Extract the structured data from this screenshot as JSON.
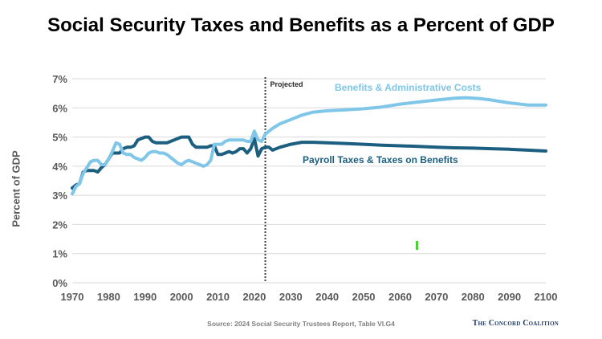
{
  "header": {
    "title": "Social Security Taxes and Benefits as a Percent of GDP"
  },
  "footer": {
    "source": "Source: 2024 Social Security Trustees Report, Table VI.G4",
    "brand": "The Concord Coalition"
  },
  "chart_data": {
    "type": "line",
    "title": "Social Security Taxes and Benefits as a Percent of GDP",
    "xlabel": "",
    "ylabel": "Percent of GDP",
    "xlim": [
      1970,
      2100
    ],
    "ylim": [
      0,
      7
    ],
    "xticks": [
      "1970",
      "1980",
      "1990",
      "2000",
      "2010",
      "2020",
      "2030",
      "2040",
      "2050",
      "2060",
      "2070",
      "2080",
      "2090",
      "2100"
    ],
    "yticks": [
      "0%",
      "1%",
      "2%",
      "3%",
      "4%",
      "5%",
      "6%",
      "7%"
    ],
    "grid": "horizontal",
    "projection_marker": {
      "x": 2023,
      "label": "Projected"
    },
    "series": [
      {
        "name": "Benefits & Administrative Costs",
        "color": "#7fc6e8",
        "points": [
          [
            1970,
            3.05
          ],
          [
            1971,
            3.3
          ],
          [
            1972,
            3.4
          ],
          [
            1973,
            3.75
          ],
          [
            1974,
            3.95
          ],
          [
            1975,
            4.15
          ],
          [
            1976,
            4.2
          ],
          [
            1977,
            4.2
          ],
          [
            1978,
            4.05
          ],
          [
            1979,
            4.05
          ],
          [
            1980,
            4.25
          ],
          [
            1981,
            4.5
          ],
          [
            1982,
            4.8
          ],
          [
            1983,
            4.75
          ],
          [
            1984,
            4.45
          ],
          [
            1985,
            4.4
          ],
          [
            1986,
            4.4
          ],
          [
            1987,
            4.3
          ],
          [
            1988,
            4.25
          ],
          [
            1989,
            4.2
          ],
          [
            1990,
            4.3
          ],
          [
            1991,
            4.45
          ],
          [
            1992,
            4.5
          ],
          [
            1993,
            4.5
          ],
          [
            1994,
            4.45
          ],
          [
            1995,
            4.45
          ],
          [
            1996,
            4.4
          ],
          [
            1997,
            4.3
          ],
          [
            1998,
            4.2
          ],
          [
            1999,
            4.1
          ],
          [
            2000,
            4.05
          ],
          [
            2001,
            4.15
          ],
          [
            2002,
            4.2
          ],
          [
            2003,
            4.15
          ],
          [
            2004,
            4.1
          ],
          [
            2005,
            4.05
          ],
          [
            2006,
            4.0
          ],
          [
            2007,
            4.05
          ],
          [
            2008,
            4.2
          ],
          [
            2009,
            4.75
          ],
          [
            2010,
            4.75
          ],
          [
            2011,
            4.75
          ],
          [
            2012,
            4.85
          ],
          [
            2013,
            4.9
          ],
          [
            2014,
            4.9
          ],
          [
            2015,
            4.9
          ],
          [
            2016,
            4.9
          ],
          [
            2017,
            4.9
          ],
          [
            2018,
            4.85
          ],
          [
            2019,
            4.85
          ],
          [
            2020,
            5.2
          ],
          [
            2021,
            4.9
          ],
          [
            2022,
            4.85
          ],
          [
            2023,
            5.1
          ],
          [
            2024,
            5.2
          ],
          [
            2025,
            5.3
          ],
          [
            2027,
            5.45
          ],
          [
            2030,
            5.6
          ],
          [
            2033,
            5.75
          ],
          [
            2036,
            5.85
          ],
          [
            2040,
            5.9
          ],
          [
            2045,
            5.93
          ],
          [
            2050,
            5.97
          ],
          [
            2055,
            6.03
          ],
          [
            2060,
            6.13
          ],
          [
            2065,
            6.2
          ],
          [
            2070,
            6.27
          ],
          [
            2075,
            6.33
          ],
          [
            2078,
            6.35
          ],
          [
            2082,
            6.32
          ],
          [
            2085,
            6.27
          ],
          [
            2090,
            6.17
          ],
          [
            2095,
            6.1
          ],
          [
            2100,
            6.1
          ]
        ]
      },
      {
        "name": "Payroll Taxes & Taxes on Benefits",
        "color": "#1b5e80",
        "points": [
          [
            1970,
            3.25
          ],
          [
            1971,
            3.35
          ],
          [
            1972,
            3.4
          ],
          [
            1973,
            3.8
          ],
          [
            1974,
            3.85
          ],
          [
            1975,
            3.85
          ],
          [
            1976,
            3.85
          ],
          [
            1977,
            3.8
          ],
          [
            1978,
            3.95
          ],
          [
            1979,
            4.05
          ],
          [
            1980,
            4.25
          ],
          [
            1981,
            4.45
          ],
          [
            1982,
            4.45
          ],
          [
            1983,
            4.45
          ],
          [
            1984,
            4.6
          ],
          [
            1985,
            4.65
          ],
          [
            1986,
            4.65
          ],
          [
            1987,
            4.7
          ],
          [
            1988,
            4.9
          ],
          [
            1989,
            4.95
          ],
          [
            1990,
            5.0
          ],
          [
            1991,
            5.0
          ],
          [
            1992,
            4.85
          ],
          [
            1993,
            4.8
          ],
          [
            1994,
            4.8
          ],
          [
            1995,
            4.8
          ],
          [
            1996,
            4.8
          ],
          [
            1997,
            4.85
          ],
          [
            1998,
            4.9
          ],
          [
            1999,
            4.95
          ],
          [
            2000,
            5.0
          ],
          [
            2001,
            5.0
          ],
          [
            2002,
            5.0
          ],
          [
            2003,
            4.75
          ],
          [
            2004,
            4.65
          ],
          [
            2005,
            4.65
          ],
          [
            2006,
            4.65
          ],
          [
            2007,
            4.65
          ],
          [
            2008,
            4.7
          ],
          [
            2009,
            4.7
          ],
          [
            2010,
            4.4
          ],
          [
            2011,
            4.4
          ],
          [
            2012,
            4.45
          ],
          [
            2013,
            4.5
          ],
          [
            2014,
            4.45
          ],
          [
            2015,
            4.5
          ],
          [
            2016,
            4.6
          ],
          [
            2017,
            4.6
          ],
          [
            2018,
            4.45
          ],
          [
            2019,
            4.6
          ],
          [
            2020,
            4.95
          ],
          [
            2021,
            4.35
          ],
          [
            2022,
            4.6
          ],
          [
            2023,
            4.65
          ],
          [
            2024,
            4.65
          ],
          [
            2025,
            4.55
          ],
          [
            2027,
            4.65
          ],
          [
            2030,
            4.75
          ],
          [
            2033,
            4.82
          ],
          [
            2036,
            4.82
          ],
          [
            2040,
            4.8
          ],
          [
            2045,
            4.78
          ],
          [
            2050,
            4.75
          ],
          [
            2055,
            4.72
          ],
          [
            2060,
            4.7
          ],
          [
            2065,
            4.68
          ],
          [
            2070,
            4.65
          ],
          [
            2075,
            4.63
          ],
          [
            2080,
            4.62
          ],
          [
            2085,
            4.6
          ],
          [
            2090,
            4.58
          ],
          [
            2095,
            4.55
          ],
          [
            2100,
            4.52
          ]
        ]
      }
    ],
    "annotations": {
      "benefits_label": "Benefits & Administrative Costs",
      "taxes_label": "Payroll Taxes & Taxes on Benefits"
    },
    "stray_marker_color": "#4cd137"
  }
}
